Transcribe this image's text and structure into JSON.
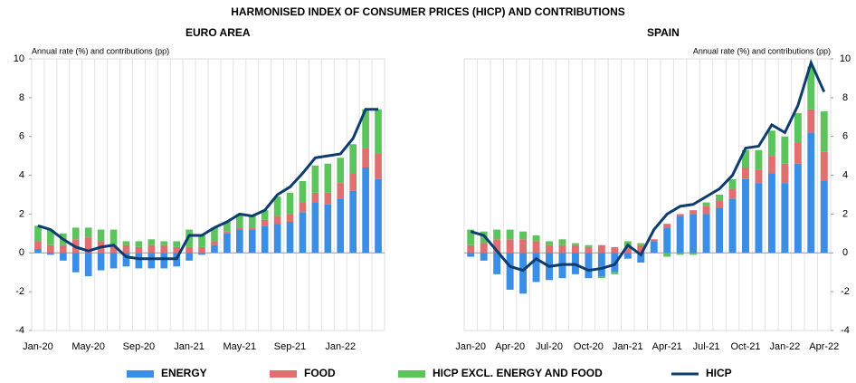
{
  "title": "HARMONISED INDEX OF CONSUMER PRICES (HICP) AND CONTRIBUTIONS",
  "chart_data": [
    {
      "type": "bar",
      "title": "EURO AREA",
      "y_label": "Annual rate (%) and contributions (pp)",
      "categories": [
        "Jan-20",
        null,
        null,
        null,
        "May-20",
        null,
        null,
        null,
        "Sep-20",
        null,
        null,
        null,
        "Jan-21",
        null,
        null,
        null,
        "May-21",
        null,
        null,
        null,
        "Sep-21",
        null,
        null,
        null,
        "Jan-22",
        null,
        null,
        null
      ],
      "ylim": [
        -4,
        10
      ],
      "yticks": [
        -4,
        -2,
        0,
        2,
        4,
        6,
        8,
        10
      ],
      "ytick_side": "left",
      "series": [
        {
          "name": "ENERGY",
          "color": "#3a8ee6",
          "values": [
            0.2,
            -0.1,
            -0.4,
            -1.0,
            -1.2,
            -0.9,
            -0.8,
            -0.7,
            -0.8,
            -0.8,
            -0.8,
            -0.7,
            -0.4,
            -0.1,
            0.4,
            1.0,
            1.2,
            1.2,
            1.4,
            1.5,
            1.6,
            2.1,
            2.6,
            2.5,
            2.8,
            3.2,
            4.4,
            3.8
          ]
        },
        {
          "name": "FOOD",
          "color": "#e07070",
          "values": [
            0.4,
            0.4,
            0.4,
            0.7,
            0.8,
            0.6,
            0.4,
            0.4,
            0.3,
            0.4,
            0.4,
            0.3,
            0.3,
            0.3,
            0.2,
            0.1,
            0.1,
            0.1,
            0.3,
            0.4,
            0.4,
            0.5,
            0.5,
            0.6,
            0.8,
            0.9,
            1.0,
            1.3
          ]
        },
        {
          "name": "HICP EXCL. ENERGY AND FOOD",
          "color": "#5cc45c",
          "values": [
            0.8,
            0.8,
            0.6,
            0.6,
            0.5,
            0.6,
            0.8,
            0.2,
            0.3,
            0.3,
            0.2,
            0.3,
            0.9,
            0.6,
            0.7,
            0.5,
            0.7,
            0.6,
            0.5,
            1.0,
            1.1,
            1.1,
            1.4,
            1.5,
            1.3,
            1.5,
            2.0,
            2.3
          ]
        },
        {
          "name": "HICP",
          "type": "line",
          "color": "#0d3d70",
          "values": [
            1.4,
            1.2,
            0.7,
            0.3,
            0.1,
            0.3,
            0.4,
            -0.2,
            -0.3,
            -0.3,
            -0.3,
            -0.3,
            0.9,
            0.9,
            1.3,
            1.6,
            2.0,
            1.9,
            2.2,
            3.0,
            3.4,
            4.1,
            4.9,
            5.0,
            5.1,
            5.9,
            7.4,
            7.4
          ]
        }
      ]
    },
    {
      "type": "bar",
      "title": "SPAIN",
      "y_label": "Annual rate (%) and contributions (pp)",
      "categories": [
        "Jan-20",
        null,
        null,
        "Apr-20",
        null,
        null,
        "Jul-20",
        null,
        null,
        "Oct-20",
        null,
        null,
        "Jan-21",
        null,
        null,
        "Apr-21",
        null,
        null,
        "Jul-21",
        null,
        null,
        "Oct-21",
        null,
        null,
        "Jan-22",
        null,
        null,
        "Apr-22"
      ],
      "ylim": [
        -4,
        10
      ],
      "yticks": [
        -4,
        -2,
        0,
        2,
        4,
        6,
        8,
        10
      ],
      "ytick_side": "right",
      "series": [
        {
          "color": "#3a8ee6",
          "values": [
            -0.2,
            -0.4,
            -1.1,
            -1.9,
            -2.1,
            -1.5,
            -1.4,
            -1.3,
            -1.1,
            -1.3,
            -1.2,
            -1.0,
            -0.3,
            -0.5,
            0.6,
            1.3,
            1.9,
            2.0,
            2.0,
            2.3,
            2.8,
            3.8,
            3.6,
            4.1,
            3.6,
            4.6,
            6.2,
            3.7
          ]
        },
        {
          "color": "#e07070",
          "values": [
            0.4,
            0.5,
            0.7,
            0.7,
            0.7,
            0.6,
            0.4,
            0.4,
            0.4,
            0.3,
            0.4,
            0.3,
            0.3,
            0.4,
            0.1,
            0.2,
            0.1,
            0.2,
            0.4,
            0.4,
            0.5,
            0.6,
            0.7,
            0.9,
            1.0,
            1.1,
            1.2,
            1.5
          ]
        },
        {
          "color": "#5cc45c",
          "values": [
            0.8,
            0.6,
            0.5,
            0.5,
            0.4,
            0.3,
            0.2,
            0.3,
            0.1,
            0.1,
            -0.1,
            -0.1,
            0.3,
            0.1,
            0,
            -0.2,
            -0.1,
            -0.1,
            0.2,
            0.3,
            0.5,
            0.9,
            1.0,
            1.3,
            1.4,
            1.5,
            2.2,
            2.1
          ]
        },
        {
          "type": "line",
          "color": "#0d3d70",
          "values": [
            1.1,
            0.9,
            0.1,
            -0.7,
            -0.9,
            -0.3,
            -0.7,
            -0.6,
            -0.6,
            -0.9,
            -0.8,
            -0.6,
            0.4,
            -0.1,
            1.2,
            2.0,
            2.4,
            2.5,
            2.9,
            3.3,
            4.0,
            5.4,
            5.5,
            6.6,
            6.2,
            7.6,
            9.8,
            8.3
          ]
        }
      ]
    }
  ]
}
